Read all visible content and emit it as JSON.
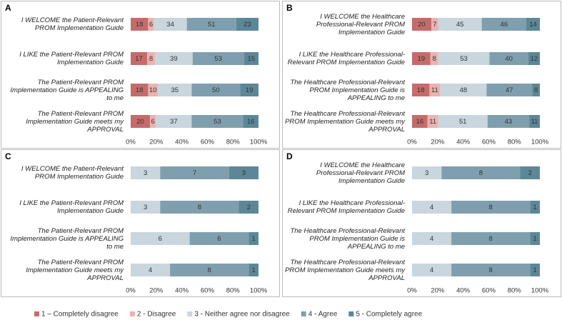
{
  "chart_data": [
    {
      "type": "stacked-bar-100",
      "title": "A",
      "categories": [
        "I WELCOME the Patient-Relevant PROM Implementation Guide",
        "I LIKE the Patient-Relevant PROM Implementation Guide",
        "The Patient-Relevant PROM Implementation Guide is APPEALING to me",
        "The Patient-Relevant PROM Implementation Guide meets my APPROVAL"
      ],
      "series": [
        {
          "name": "1 – Completely disagree",
          "color": "#c66b6b",
          "values": [
            18,
            17,
            18,
            20
          ]
        },
        {
          "name": "2 - Disagree",
          "color": "#e8b3b0",
          "values": [
            6,
            8,
            10,
            6
          ]
        },
        {
          "name": "3 - Neither agree nor disagree",
          "color": "#c9d6dd",
          "values": [
            34,
            39,
            35,
            37
          ]
        },
        {
          "name": "4 - Agree",
          "color": "#7f9fae",
          "values": [
            51,
            53,
            50,
            53
          ]
        },
        {
          "name": "5 - Completely agree",
          "color": "#5c8797",
          "values": [
            23,
            15,
            19,
            16
          ]
        }
      ],
      "xlim": [
        0,
        100
      ],
      "xticks": [
        {
          "value": 0,
          "label": "0%"
        },
        {
          "value": 20,
          "label": "20%"
        },
        {
          "value": 40,
          "label": "40%"
        },
        {
          "value": 60,
          "label": "60%"
        },
        {
          "value": 80,
          "label": "80%"
        },
        {
          "value": 100,
          "label": "100%"
        }
      ]
    },
    {
      "type": "stacked-bar-100",
      "title": "B",
      "categories": [
        "I WELCOME the Healthcare Professional-Relevant PROM Implementation Guide",
        "I LIKE the Healthcare Professional-Relevant PROM Implementation Guide",
        "The Healthcare Professional-Relevant PROM Implementation Guide is APPEALING to me",
        "The Healthcare Professional-Relevant PROM Implementation Guide meets my APPROVAL"
      ],
      "series": [
        {
          "name": "1 – Completely disagree",
          "color": "#c66b6b",
          "values": [
            20,
            19,
            18,
            16
          ]
        },
        {
          "name": "2 - Disagree",
          "color": "#e8b3b0",
          "values": [
            7,
            8,
            11,
            11
          ]
        },
        {
          "name": "3 - Neither agree nor disagree",
          "color": "#c9d6dd",
          "values": [
            45,
            53,
            48,
            51
          ]
        },
        {
          "name": "4 - Agree",
          "color": "#7f9fae",
          "values": [
            46,
            40,
            47,
            43
          ]
        },
        {
          "name": "5 - Completely agree",
          "color": "#5c8797",
          "values": [
            14,
            12,
            8,
            11
          ]
        }
      ],
      "xlim": [
        0,
        100
      ],
      "xticks": [
        {
          "value": 0,
          "label": "0%"
        },
        {
          "value": 20,
          "label": "20%"
        },
        {
          "value": 40,
          "label": "40%"
        },
        {
          "value": 60,
          "label": "60%"
        },
        {
          "value": 80,
          "label": "80%"
        },
        {
          "value": 100,
          "label": "100%"
        }
      ]
    },
    {
      "type": "stacked-bar-100",
      "title": "C",
      "categories": [
        "I WELCOME the Patient-Relevant PROM Implementation Guide",
        "I LIKE the Patient-Relevant PROM Implementation Guide",
        "The Patient-Relevant PROM Implementation Guide is APPEALING to me",
        "The Patient-Relevant PROM Implementation Guide meets my APPROVAL"
      ],
      "series": [
        {
          "name": "1 – Completely disagree",
          "color": "#c66b6b",
          "values": [
            null,
            null,
            null,
            null
          ]
        },
        {
          "name": "2 - Disagree",
          "color": "#e8b3b0",
          "values": [
            null,
            null,
            null,
            null
          ]
        },
        {
          "name": "3 - Neither agree nor disagree",
          "color": "#c9d6dd",
          "values": [
            3,
            3,
            6,
            4
          ]
        },
        {
          "name": "4 - Agree",
          "color": "#7f9fae",
          "values": [
            7,
            8,
            6,
            8
          ]
        },
        {
          "name": "5 - Completely agree",
          "color": "#5c8797",
          "values": [
            3,
            2,
            1,
            1
          ]
        }
      ],
      "xlim": [
        0,
        100
      ],
      "xticks": [
        {
          "value": 0,
          "label": "0%"
        },
        {
          "value": 20,
          "label": "20%"
        },
        {
          "value": 40,
          "label": "40%"
        },
        {
          "value": 60,
          "label": "60%"
        },
        {
          "value": 80,
          "label": "80%"
        },
        {
          "value": 100,
          "label": "100%"
        }
      ]
    },
    {
      "type": "stacked-bar-100",
      "title": "D",
      "categories": [
        "I WELCOME the Healthcare Professional-Relevant PROM Implementation Guide",
        "I LIKE the Healthcare Professional-Relevant PROM Implementation Guide",
        "The Healthcare Professional-Relevant PROM Implementation Guide is APPEALING to me",
        "The Healthcare Professional-Relevant PROM Implementation Guide meets my APPROVAL"
      ],
      "series": [
        {
          "name": "1 – Completely disagree",
          "color": "#c66b6b",
          "values": [
            null,
            null,
            null,
            null
          ]
        },
        {
          "name": "2 - Disagree",
          "color": "#e8b3b0",
          "values": [
            null,
            null,
            null,
            null
          ]
        },
        {
          "name": "3 - Neither agree nor disagree",
          "color": "#c9d6dd",
          "values": [
            3,
            4,
            4,
            4
          ]
        },
        {
          "name": "4 - Agree",
          "color": "#7f9fae",
          "values": [
            8,
            8,
            8,
            8
          ]
        },
        {
          "name": "5 - Completely agree",
          "color": "#5c8797",
          "values": [
            2,
            1,
            1,
            1
          ]
        }
      ],
      "xlim": [
        0,
        100
      ],
      "xticks": [
        {
          "value": 0,
          "label": "0%"
        },
        {
          "value": 20,
          "label": "20%"
        },
        {
          "value": 40,
          "label": "40%"
        },
        {
          "value": 60,
          "label": "60%"
        },
        {
          "value": 80,
          "label": "80%"
        },
        {
          "value": 100,
          "label": "100%"
        }
      ]
    }
  ]
}
